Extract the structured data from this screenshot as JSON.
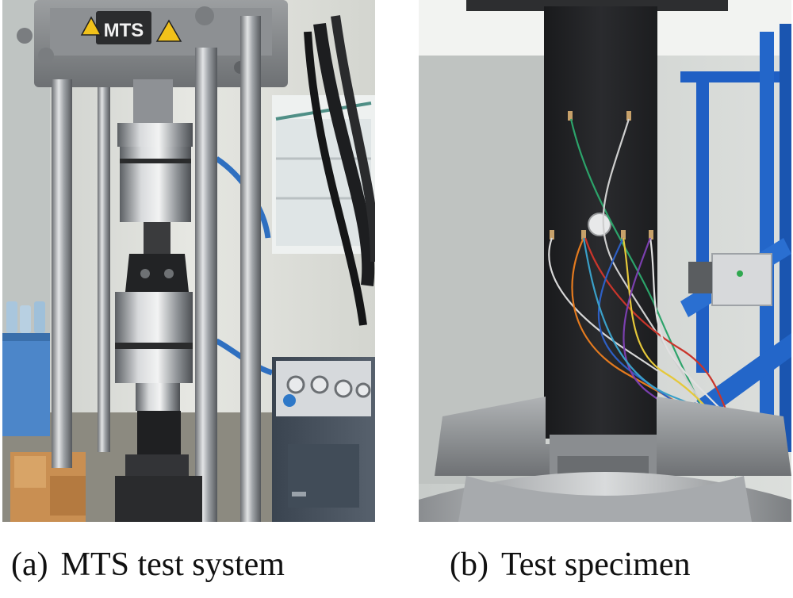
{
  "panels": [
    {
      "label": "(a)",
      "caption": "MTS test system",
      "machine_logo_text": "MTS"
    },
    {
      "label": "(b)",
      "caption": "Test specimen"
    }
  ]
}
